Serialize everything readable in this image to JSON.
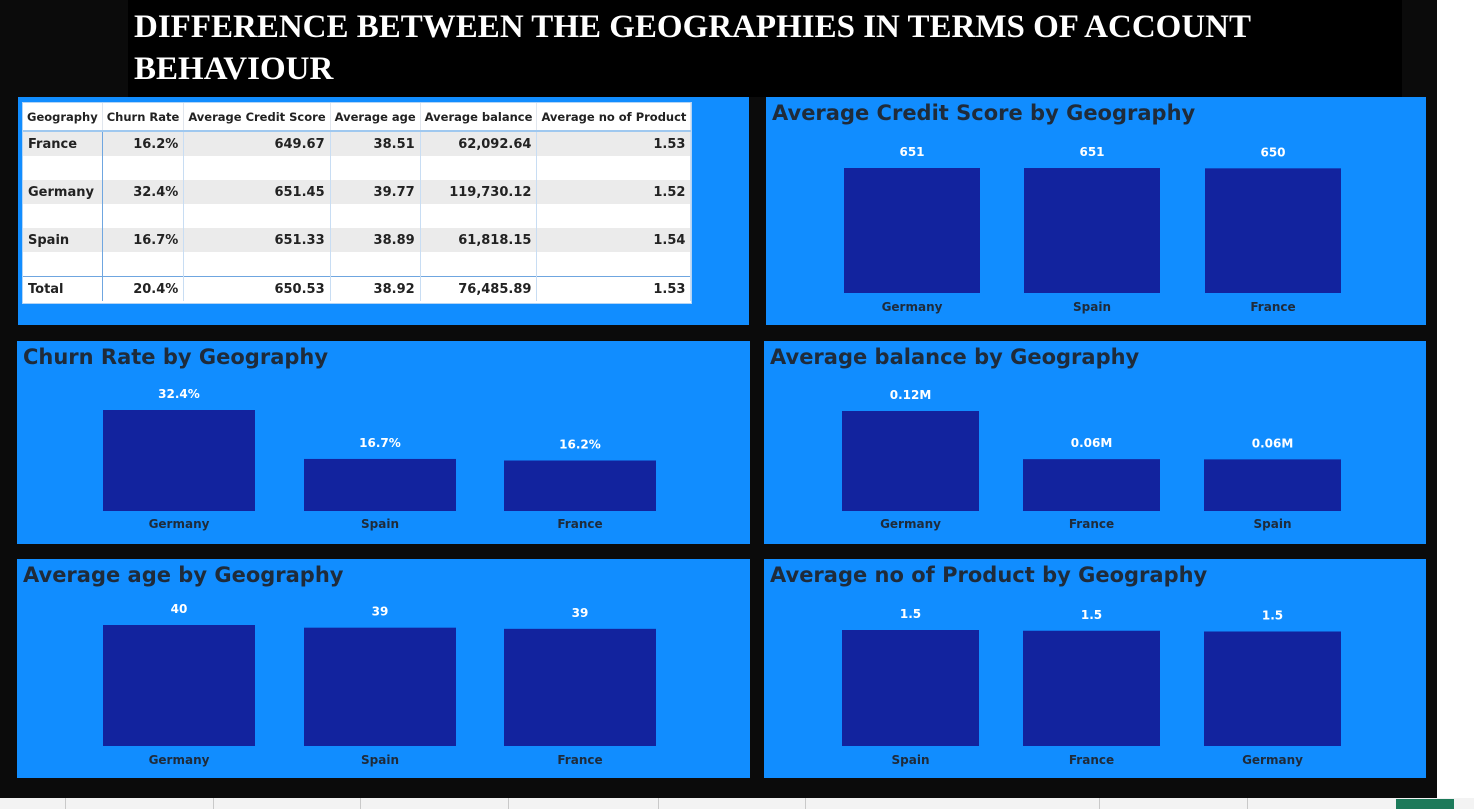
{
  "title": "DIFFERENCE BETWEEN THE GEOGRAPHIES IN TERMS OF ACCOUNT BEHAVIOUR",
  "colors": {
    "panel": "#118dff",
    "bar": "#12239e",
    "background": "#0b0b0b",
    "title_bg": "#000000"
  },
  "table": {
    "headers": [
      "Geography",
      "Churn Rate",
      "Average Credit Score",
      "Average age",
      "Average balance",
      "Average no of Product"
    ],
    "rows": [
      [
        "France",
        "16.2%",
        "649.67",
        "38.51",
        "62,092.64",
        "1.53"
      ],
      [
        "Germany",
        "32.4%",
        "651.45",
        "39.77",
        "119,730.12",
        "1.52"
      ],
      [
        "Spain",
        "16.7%",
        "651.33",
        "38.89",
        "61,818.15",
        "1.54"
      ]
    ],
    "total": [
      "Total",
      "20.4%",
      "650.53",
      "38.92",
      "76,485.89",
      "1.53"
    ]
  },
  "chart_data": [
    {
      "id": "credit",
      "type": "bar",
      "title": "Average Credit Score by Geography",
      "categories": [
        "Germany",
        "Spain",
        "France"
      ],
      "values": [
        651.45,
        651.33,
        649.67
      ],
      "labels": [
        "651",
        "651",
        "650"
      ],
      "ylim": [
        0,
        651.45
      ]
    },
    {
      "id": "churn",
      "type": "bar",
      "title": "Churn Rate by Geography",
      "categories": [
        "Germany",
        "Spain",
        "France"
      ],
      "values": [
        32.4,
        16.7,
        16.2
      ],
      "labels": [
        "32.4%",
        "16.7%",
        "16.2%"
      ],
      "ylim": [
        0,
        32.4
      ]
    },
    {
      "id": "balance",
      "type": "bar",
      "title": "Average balance by Geography",
      "categories": [
        "Germany",
        "France",
        "Spain"
      ],
      "values": [
        119730.12,
        62092.64,
        61818.15
      ],
      "labels": [
        "0.12M",
        "0.06M",
        "0.06M"
      ],
      "ylim": [
        0,
        119730.12
      ]
    },
    {
      "id": "age",
      "type": "bar",
      "title": "Average age by Geography",
      "categories": [
        "Germany",
        "Spain",
        "France"
      ],
      "values": [
        39.77,
        38.89,
        38.51
      ],
      "labels": [
        "40",
        "39",
        "39"
      ],
      "ylim": [
        0,
        39.77
      ]
    },
    {
      "id": "product",
      "type": "bar",
      "title": "Average no of Product by Geography",
      "categories": [
        "Spain",
        "France",
        "Germany"
      ],
      "values": [
        1.54,
        1.53,
        1.52
      ],
      "labels": [
        "1.5",
        "1.5",
        "1.5"
      ],
      "ylim": [
        0,
        1.54
      ]
    }
  ]
}
